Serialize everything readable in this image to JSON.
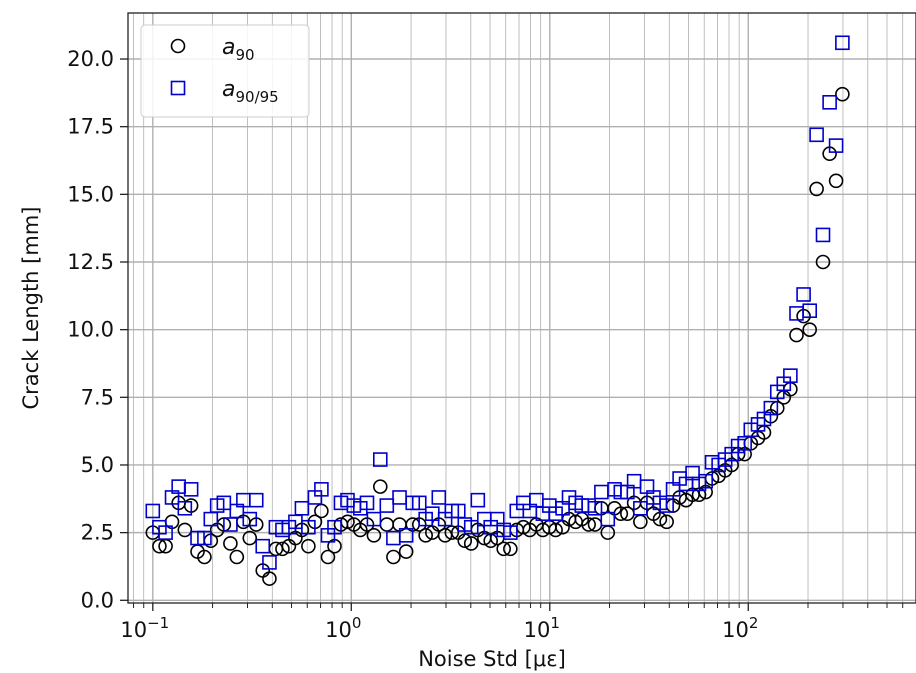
{
  "chart_data": {
    "type": "scatter",
    "xlabel": "Noise Std [με]",
    "ylabel": "Crack Length [mm]",
    "xscale": "log",
    "xlim": [
      0.075,
      700
    ],
    "ylim": [
      -0.1,
      21.7
    ],
    "x_ticks": [
      {
        "value": 0.1,
        "base": "10",
        "exp": "−1"
      },
      {
        "value": 1,
        "base": "10",
        "exp": "0"
      },
      {
        "value": 10,
        "base": "10",
        "exp": "1"
      },
      {
        "value": 100,
        "base": "10",
        "exp": "2"
      }
    ],
    "y_ticks": [
      "0.0",
      "2.5",
      "5.0",
      "7.5",
      "10.0",
      "12.5",
      "15.0",
      "17.5",
      "20.0"
    ],
    "grid": "on (major and minor)",
    "legend_position": "top-left",
    "series": [
      {
        "name": "a90",
        "legend_base": "a",
        "legend_sub": "90",
        "marker": "circle",
        "color": "#000000",
        "points": [
          [
            0.1,
            2.5
          ],
          [
            0.108,
            2.0
          ],
          [
            0.116,
            2.0
          ],
          [
            0.125,
            2.9
          ],
          [
            0.135,
            3.6
          ],
          [
            0.145,
            2.6
          ],
          [
            0.156,
            3.5
          ],
          [
            0.168,
            1.8
          ],
          [
            0.182,
            1.6
          ],
          [
            0.196,
            2.2
          ],
          [
            0.211,
            2.6
          ],
          [
            0.228,
            2.8
          ],
          [
            0.246,
            2.1
          ],
          [
            0.265,
            1.6
          ],
          [
            0.286,
            2.9
          ],
          [
            0.308,
            2.3
          ],
          [
            0.332,
            2.8
          ],
          [
            0.358,
            1.1
          ],
          [
            0.387,
            0.8
          ],
          [
            0.417,
            1.9
          ],
          [
            0.45,
            1.9
          ],
          [
            0.485,
            2.0
          ],
          [
            0.523,
            2.3
          ],
          [
            0.564,
            2.6
          ],
          [
            0.608,
            2.0
          ],
          [
            0.656,
            2.9
          ],
          [
            0.707,
            3.3
          ],
          [
            0.763,
            1.6
          ],
          [
            0.823,
            2.0
          ],
          [
            0.887,
            2.8
          ],
          [
            0.957,
            2.9
          ],
          [
            1.03,
            2.8
          ],
          [
            1.11,
            2.6
          ],
          [
            1.2,
            2.8
          ],
          [
            1.3,
            2.4
          ],
          [
            1.4,
            4.2
          ],
          [
            1.51,
            2.8
          ],
          [
            1.63,
            1.6
          ],
          [
            1.75,
            2.8
          ],
          [
            1.89,
            1.8
          ],
          [
            2.04,
            2.8
          ],
          [
            2.2,
            2.8
          ],
          [
            2.37,
            2.4
          ],
          [
            2.56,
            2.5
          ],
          [
            2.76,
            2.8
          ],
          [
            2.97,
            2.4
          ],
          [
            3.21,
            2.5
          ],
          [
            3.46,
            2.5
          ],
          [
            3.73,
            2.2
          ],
          [
            4.02,
            2.1
          ],
          [
            4.34,
            2.6
          ],
          [
            4.68,
            2.3
          ],
          [
            5.04,
            2.2
          ],
          [
            5.44,
            2.3
          ],
          [
            5.86,
            1.9
          ],
          [
            6.33,
            1.9
          ],
          [
            6.82,
            2.6
          ],
          [
            7.36,
            2.7
          ],
          [
            7.93,
            2.6
          ],
          [
            8.56,
            2.8
          ],
          [
            9.23,
            2.6
          ],
          [
            9.95,
            2.7
          ],
          [
            10.7,
            2.6
          ],
          [
            11.6,
            2.7
          ],
          [
            12.5,
            3.0
          ],
          [
            13.5,
            2.9
          ],
          [
            14.5,
            3.0
          ],
          [
            15.7,
            2.8
          ],
          [
            16.9,
            2.8
          ],
          [
            18.2,
            3.4
          ],
          [
            19.6,
            2.5
          ],
          [
            21.2,
            3.4
          ],
          [
            22.8,
            3.2
          ],
          [
            24.6,
            3.2
          ],
          [
            26.6,
            3.6
          ],
          [
            28.6,
            2.9
          ],
          [
            30.9,
            3.6
          ],
          [
            33.3,
            3.2
          ],
          [
            35.9,
            3.0
          ],
          [
            38.8,
            2.9
          ],
          [
            41.8,
            3.5
          ],
          [
            45.1,
            3.8
          ],
          [
            48.6,
            3.7
          ],
          [
            52.4,
            3.9
          ],
          [
            56.5,
            3.9
          ],
          [
            61.0,
            4.0
          ],
          [
            65.7,
            4.5
          ],
          [
            70.9,
            4.6
          ],
          [
            76.5,
            4.8
          ],
          [
            82.5,
            5.0
          ],
          [
            88.9,
            5.4
          ],
          [
            95.9,
            5.4
          ],
          [
            103,
            5.8
          ],
          [
            112,
            6.0
          ],
          [
            120,
            6.2
          ],
          [
            130,
            6.8
          ],
          [
            140,
            7.1
          ],
          [
            151,
            7.5
          ],
          [
            163,
            7.8
          ],
          [
            175,
            9.8
          ],
          [
            190,
            10.5
          ],
          [
            204,
            10.0
          ],
          [
            221,
            15.2
          ],
          [
            238,
            12.5
          ],
          [
            257,
            16.5
          ],
          [
            277,
            15.5
          ],
          [
            298,
            18.7
          ]
        ]
      },
      {
        "name": "a90/95",
        "legend_base": "a",
        "legend_sub": "90/95",
        "marker": "square",
        "color": "#0000cc",
        "points": [
          [
            0.1,
            3.3
          ],
          [
            0.108,
            2.7
          ],
          [
            0.116,
            2.5
          ],
          [
            0.125,
            3.8
          ],
          [
            0.135,
            4.2
          ],
          [
            0.145,
            3.4
          ],
          [
            0.156,
            4.1
          ],
          [
            0.168,
            2.3
          ],
          [
            0.182,
            2.3
          ],
          [
            0.196,
            3.0
          ],
          [
            0.211,
            3.5
          ],
          [
            0.228,
            3.6
          ],
          [
            0.246,
            2.8
          ],
          [
            0.265,
            3.3
          ],
          [
            0.286,
            3.7
          ],
          [
            0.308,
            3.0
          ],
          [
            0.332,
            3.7
          ],
          [
            0.358,
            2.0
          ],
          [
            0.387,
            1.4
          ],
          [
            0.417,
            2.7
          ],
          [
            0.45,
            2.6
          ],
          [
            0.485,
            2.7
          ],
          [
            0.523,
            2.9
          ],
          [
            0.564,
            3.4
          ],
          [
            0.608,
            2.7
          ],
          [
            0.656,
            3.8
          ],
          [
            0.707,
            4.1
          ],
          [
            0.763,
            2.4
          ],
          [
            0.823,
            2.7
          ],
          [
            0.887,
            3.6
          ],
          [
            0.957,
            3.7
          ],
          [
            1.03,
            3.5
          ],
          [
            1.11,
            3.4
          ],
          [
            1.2,
            3.6
          ],
          [
            1.3,
            3.0
          ],
          [
            1.4,
            5.2
          ],
          [
            1.51,
            3.5
          ],
          [
            1.63,
            2.3
          ],
          [
            1.75,
            3.8
          ],
          [
            1.89,
            2.4
          ],
          [
            2.04,
            3.6
          ],
          [
            2.2,
            3.6
          ],
          [
            2.37,
            3.0
          ],
          [
            2.56,
            3.2
          ],
          [
            2.76,
            3.8
          ],
          [
            2.97,
            3.0
          ],
          [
            3.21,
            3.3
          ],
          [
            3.46,
            3.3
          ],
          [
            3.73,
            2.8
          ],
          [
            4.02,
            2.7
          ],
          [
            4.34,
            3.7
          ],
          [
            4.68,
            3.0
          ],
          [
            5.04,
            2.7
          ],
          [
            5.44,
            3.0
          ],
          [
            5.86,
            2.6
          ],
          [
            6.33,
            2.5
          ],
          [
            6.82,
            3.3
          ],
          [
            7.36,
            3.6
          ],
          [
            7.93,
            3.3
          ],
          [
            8.56,
            3.7
          ],
          [
            9.23,
            3.2
          ],
          [
            9.95,
            3.5
          ],
          [
            10.7,
            3.2
          ],
          [
            11.6,
            3.4
          ],
          [
            12.5,
            3.8
          ],
          [
            13.5,
            3.6
          ],
          [
            14.5,
            3.5
          ],
          [
            15.7,
            3.5
          ],
          [
            16.9,
            3.4
          ],
          [
            18.2,
            4.0
          ],
          [
            19.6,
            3.0
          ],
          [
            21.2,
            4.1
          ],
          [
            22.8,
            4.0
          ],
          [
            24.6,
            4.0
          ],
          [
            26.6,
            4.4
          ],
          [
            28.6,
            3.4
          ],
          [
            30.9,
            4.2
          ],
          [
            33.3,
            3.8
          ],
          [
            35.9,
            3.6
          ],
          [
            38.8,
            3.5
          ],
          [
            41.8,
            4.1
          ],
          [
            45.1,
            4.5
          ],
          [
            48.6,
            4.3
          ],
          [
            52.4,
            4.7
          ],
          [
            56.5,
            4.3
          ],
          [
            61.0,
            4.4
          ],
          [
            65.7,
            5.1
          ],
          [
            70.9,
            5.0
          ],
          [
            76.5,
            5.2
          ],
          [
            82.5,
            5.4
          ],
          [
            88.9,
            5.7
          ],
          [
            95.9,
            5.8
          ],
          [
            103,
            6.3
          ],
          [
            112,
            6.5
          ],
          [
            120,
            6.7
          ],
          [
            130,
            7.1
          ],
          [
            140,
            7.7
          ],
          [
            151,
            8.0
          ],
          [
            163,
            8.3
          ],
          [
            175,
            10.6
          ],
          [
            190,
            11.3
          ],
          [
            204,
            10.7
          ],
          [
            221,
            17.2
          ],
          [
            238,
            13.5
          ],
          [
            257,
            18.4
          ],
          [
            277,
            16.8
          ],
          [
            298,
            20.6
          ]
        ]
      }
    ]
  }
}
